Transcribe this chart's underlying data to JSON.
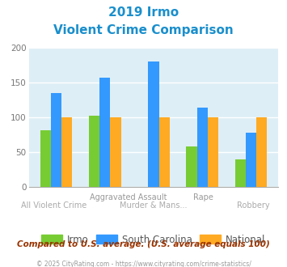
{
  "title_line1": "2019 Irmo",
  "title_line2": "Violent Crime Comparison",
  "categories": [
    "All Violent Crime",
    "Aggravated Assault",
    "Murder & Mans...",
    "Rape",
    "Robbery"
  ],
  "series": {
    "Irmo": [
      82,
      103,
      0,
      58,
      40
    ],
    "South Carolina": [
      135,
      157,
      181,
      114,
      78
    ],
    "National": [
      100,
      100,
      100,
      100,
      100
    ]
  },
  "colors": {
    "Irmo": "#77cc33",
    "South Carolina": "#3399ff",
    "National": "#ffaa22"
  },
  "ylim": [
    0,
    200
  ],
  "yticks": [
    0,
    50,
    100,
    150,
    200
  ],
  "bg_color": "#deeef6",
  "grid_color": "#ffffff",
  "footer_text": "Compared to U.S. average. (U.S. average equals 100)",
  "copyright_text": "© 2025 CityRating.com - https://www.cityrating.com/crime-statistics/",
  "title_color": "#1a8fcc",
  "footer_color": "#993300",
  "copyright_color": "#999999",
  "xtick_top_labels": [
    "",
    "Aggravated Assault",
    "",
    "Rape",
    ""
  ],
  "xtick_bottom_labels": [
    "All Violent Crime",
    "",
    "Murder & Mans...",
    "",
    "Robbery"
  ]
}
